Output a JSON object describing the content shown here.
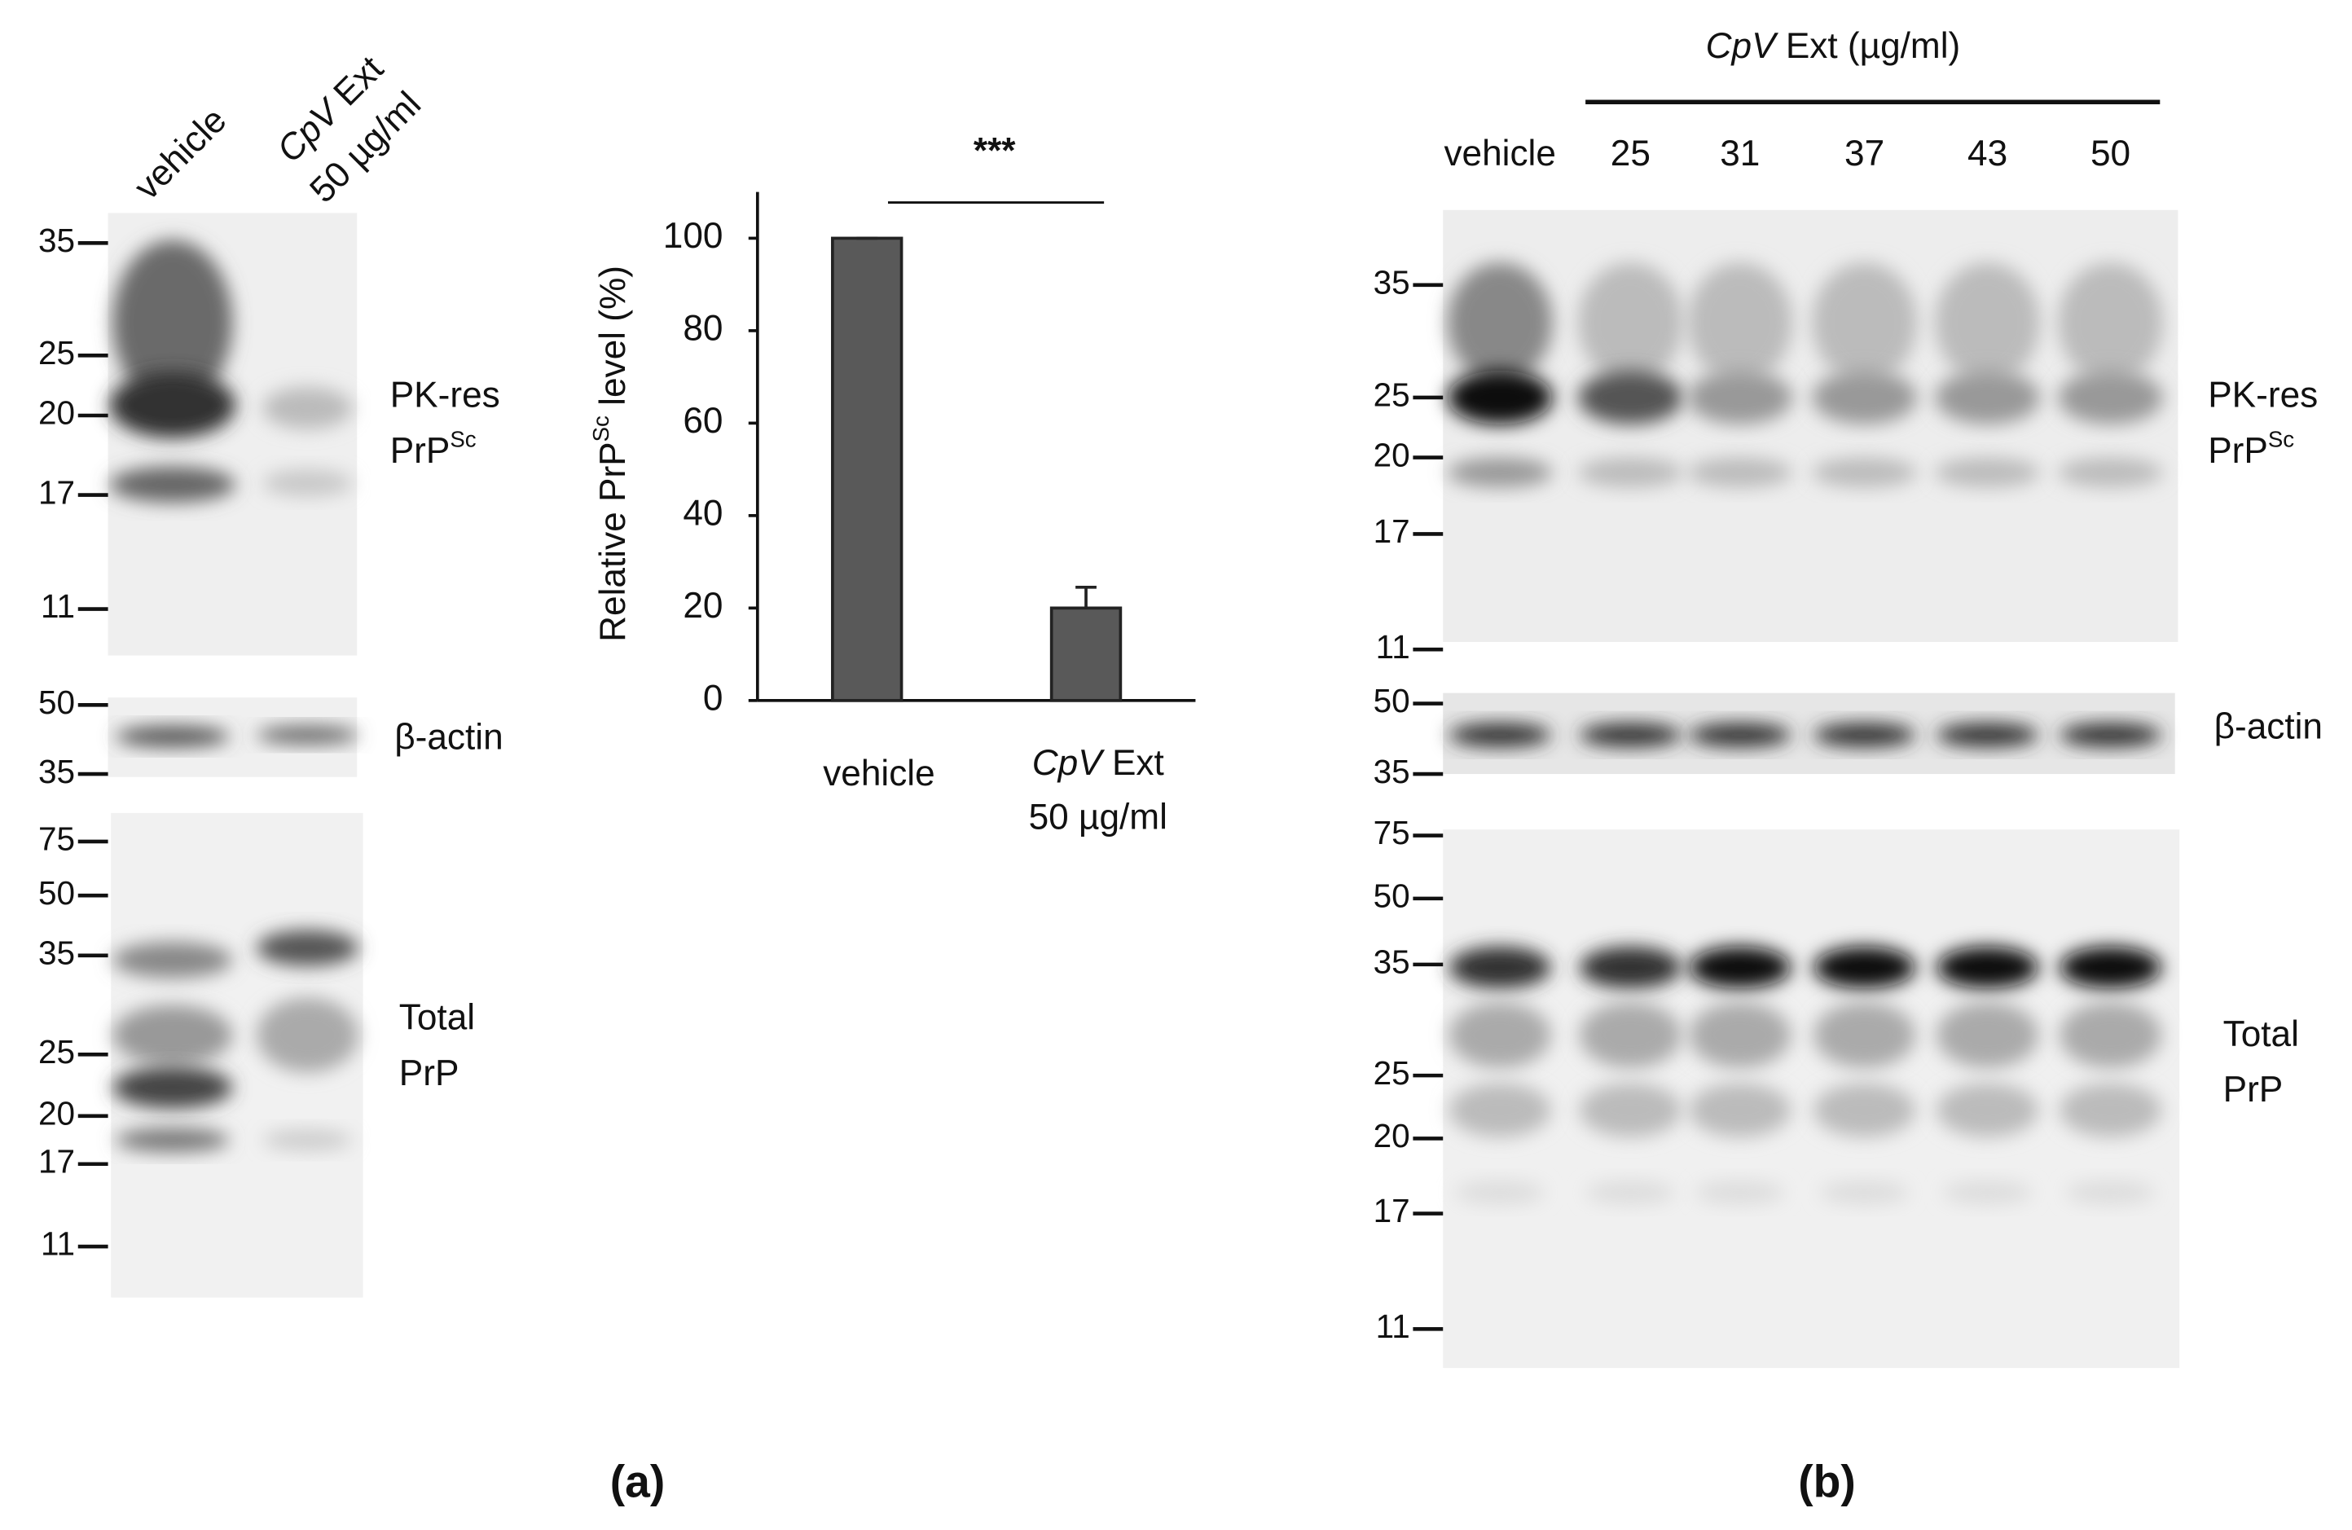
{
  "panel_a": {
    "lanes": [
      "vehicle",
      {
        "agent": "CpV",
        "rest": "Ext",
        "dose": "50 µg/ml"
      }
    ],
    "pk_markers": [
      35,
      25,
      20,
      17,
      11
    ],
    "actin_markers": [
      50,
      35
    ],
    "total_markers": [
      75,
      50,
      35,
      25,
      20,
      17,
      11
    ],
    "pk_label": {
      "line1": "PK-res",
      "base": "PrP",
      "sup": "Sc"
    },
    "actin_label": "β-actin",
    "total_label": {
      "line1": "Total",
      "line2": "PrP"
    },
    "caption": "(a)"
  },
  "chart_data": {
    "type": "bar",
    "ylabel": {
      "before": "Relative PrP",
      "sup": "Sc",
      "after": " level (%)"
    },
    "categories": [
      [
        [
          {
            "text": "vehicle"
          }
        ]
      ],
      [
        [
          {
            "text": "CpV",
            "italic": true
          },
          {
            "text": " Ext"
          }
        ],
        [
          {
            "text": "50 µg/ml"
          }
        ]
      ]
    ],
    "values": [
      100,
      20
    ],
    "errors": [
      0,
      4.5
    ],
    "color": "#595959",
    "ylim": [
      0,
      110
    ],
    "yticks": [
      0,
      20,
      40,
      60,
      80,
      100
    ],
    "significance": "***"
  },
  "panel_b": {
    "header": {
      "agent": "CpV",
      "rest": " Ext (µg/ml)"
    },
    "lanes": [
      "vehicle",
      25,
      31,
      37,
      43,
      50
    ],
    "pk_markers": [
      35,
      25,
      20,
      17,
      11
    ],
    "actin_markers": [
      50,
      35
    ],
    "total_markers": [
      75,
      50,
      35,
      25,
      20,
      17,
      11
    ],
    "pk_label": {
      "line1": "PK-res",
      "base": "PrP",
      "sup": "Sc"
    },
    "actin_label": "β-actin",
    "total_label": {
      "line1": "Total",
      "line2": "PrP"
    },
    "caption": "(b)"
  }
}
